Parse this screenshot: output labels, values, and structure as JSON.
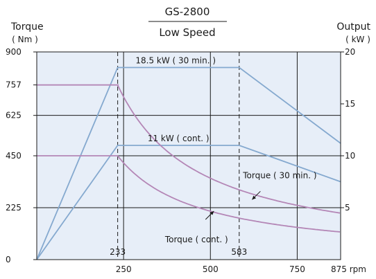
{
  "chart_data": {
    "type": "line",
    "title": "GS-2800",
    "subtitle": "Low Speed",
    "left_axis": {
      "label": "Torque",
      "unit": "( Nm )",
      "ylim": [
        0,
        900
      ],
      "ticks": [
        0,
        225,
        450,
        625,
        757,
        900
      ]
    },
    "right_axis": {
      "label": "Output",
      "unit": "( kW )",
      "ylim": [
        0,
        20
      ],
      "ticks": [
        5,
        10,
        15,
        20
      ]
    },
    "x_axis": {
      "unit": "rpm",
      "xlim": [
        0,
        875
      ],
      "ticks": [
        250,
        500,
        750,
        875
      ],
      "tick_labels": [
        "250",
        "500",
        "750",
        "875 rpm"
      ],
      "markers": [
        233,
        583
      ],
      "marker_labels": [
        "233",
        "583"
      ]
    },
    "grid": true,
    "series": [
      {
        "name": "18.5 kW ( 30 min. )",
        "axis": "right",
        "x": [
          0,
          233,
          583,
          875
        ],
        "y": [
          0,
          18.5,
          18.5,
          11.2
        ],
        "color": "#85a9cf"
      },
      {
        "name": "11 kW ( cont. )",
        "axis": "right",
        "x": [
          0,
          233,
          583,
          875
        ],
        "y": [
          0,
          11,
          11,
          7.5
        ],
        "color": "#85a9cf"
      },
      {
        "name": "Torque ( 30 min. )",
        "axis": "left",
        "x": [
          0,
          233,
          300,
          400,
          500,
          583,
          700,
          875
        ],
        "y": [
          757,
          757,
          589,
          442,
          353,
          303,
          252,
          202
        ],
        "color": "#b486b6"
      },
      {
        "name": "Torque ( cont. )",
        "axis": "left",
        "x": [
          0,
          233,
          300,
          400,
          500,
          583,
          700,
          875
        ],
        "y": [
          450,
          450,
          350,
          263,
          210,
          180,
          150,
          120
        ],
        "color": "#b486b6"
      }
    ],
    "annotations": [
      {
        "text": "18.5 kW ( 30 min. )",
        "x": 400,
        "y_right": 18.5
      },
      {
        "text": "11 kW ( cont. )",
        "x": 408,
        "y_right": 11
      },
      {
        "text": "Torque ( 30 min. )",
        "x": 700,
        "y_left": 352,
        "arrow_to": [
          620,
          260
        ]
      },
      {
        "text": "Torque ( cont. )",
        "x": 460,
        "y_left": 75,
        "arrow_to": [
          510,
          210
        ]
      }
    ]
  }
}
